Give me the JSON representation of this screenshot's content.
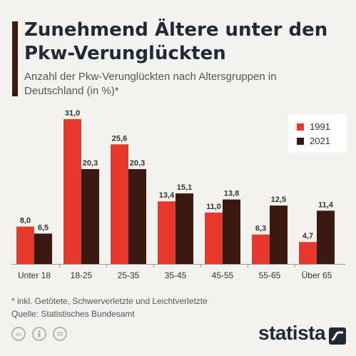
{
  "header": {
    "title": "Zunehmend Ältere unter den Pkw-Verunglückten",
    "subtitle": "Anzahl der Pkw-Verunglückten nach Altersgruppen in Deutschland (in %)*"
  },
  "colors": {
    "series_1991": "#e8382b",
    "series_2021": "#3a1a10",
    "accent": "#3a1a10"
  },
  "chart_data": {
    "type": "bar",
    "categories": [
      "Unter 18",
      "18-25",
      "25-35",
      "35-45",
      "45-55",
      "55-65",
      "Über 65"
    ],
    "series": [
      {
        "name": "1991",
        "values": [
          8.0,
          31.0,
          25.6,
          13.4,
          11.0,
          6.3,
          4.7
        ]
      },
      {
        "name": "2021",
        "values": [
          6.5,
          20.3,
          20.3,
          15.1,
          13.8,
          12.5,
          11.4
        ]
      }
    ],
    "value_labels": [
      [
        "8,0",
        "31,0",
        "25,6",
        "13,4",
        "11,0",
        "6,3",
        "4,7"
      ],
      [
        "6,5",
        "20,3",
        "20,3",
        "15,1",
        "13,8",
        "12,5",
        "11,4"
      ]
    ],
    "ylim": [
      0,
      31
    ],
    "grid": false,
    "legend_position": "top-right"
  },
  "footnote": {
    "note": "* inkl. Getötete, Schwerverletzte und Leichtverletzte",
    "source": "Quelle: Statistisches Bundesamt"
  },
  "icons": [
    "cc-icon",
    "person-icon",
    "equals-icon"
  ],
  "brand": {
    "logo_text": "statista"
  }
}
